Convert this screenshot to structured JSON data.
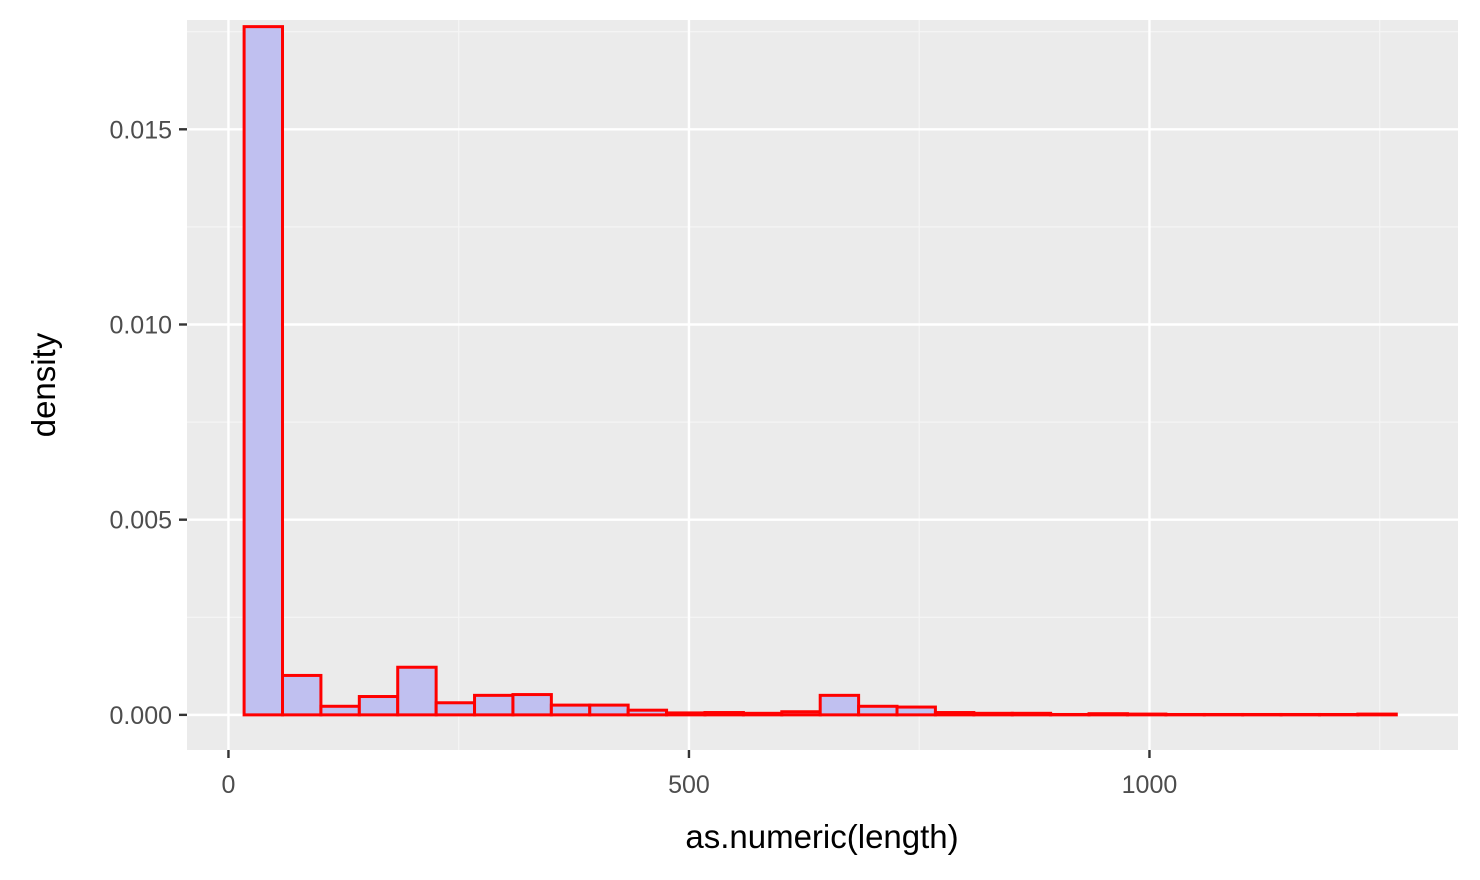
{
  "chart_data": {
    "type": "bar",
    "subtype": "histogram",
    "title": "",
    "xlabel": "as.numeric(length)",
    "ylabel": "density",
    "xlim": [
      -45,
      1335
    ],
    "ylim": [
      -0.0009,
      0.0178
    ],
    "x_ticks": [
      0,
      500,
      1000
    ],
    "x_tick_labels": [
      "0",
      "500",
      "1000"
    ],
    "y_ticks": [
      0.0,
      0.005,
      0.01,
      0.015
    ],
    "y_tick_labels": [
      "0.000",
      "0.005",
      "0.010",
      "0.015"
    ],
    "grid": true,
    "bin_width": 41.7,
    "bins": [
      {
        "x0": 17.0,
        "x1": 58.7,
        "density": 0.01763
      },
      {
        "x0": 58.7,
        "x1": 100.4,
        "density": 0.00101
      },
      {
        "x0": 100.4,
        "x1": 142.1,
        "density": 0.00022
      },
      {
        "x0": 142.1,
        "x1": 183.8,
        "density": 0.00047
      },
      {
        "x0": 183.8,
        "x1": 225.5,
        "density": 0.00122
      },
      {
        "x0": 225.5,
        "x1": 267.2,
        "density": 0.00031
      },
      {
        "x0": 267.2,
        "x1": 308.9,
        "density": 0.0005
      },
      {
        "x0": 308.9,
        "x1": 350.6,
        "density": 0.00052
      },
      {
        "x0": 350.6,
        "x1": 392.3,
        "density": 0.00025
      },
      {
        "x0": 392.3,
        "x1": 434.0,
        "density": 0.00025
      },
      {
        "x0": 434.0,
        "x1": 475.7,
        "density": 0.00012
      },
      {
        "x0": 475.7,
        "x1": 517.4,
        "density": 5e-05
      },
      {
        "x0": 517.4,
        "x1": 559.1,
        "density": 6e-05
      },
      {
        "x0": 559.1,
        "x1": 600.8,
        "density": 4e-05
      },
      {
        "x0": 600.8,
        "x1": 642.5,
        "density": 8e-05
      },
      {
        "x0": 642.5,
        "x1": 684.2,
        "density": 0.0005
      },
      {
        "x0": 684.2,
        "x1": 725.9,
        "density": 0.00022
      },
      {
        "x0": 725.9,
        "x1": 767.6,
        "density": 0.0002
      },
      {
        "x0": 767.6,
        "x1": 809.3,
        "density": 6e-05
      },
      {
        "x0": 809.3,
        "x1": 851.0,
        "density": 4e-05
      },
      {
        "x0": 851.0,
        "x1": 892.7,
        "density": 4e-05
      },
      {
        "x0": 892.7,
        "x1": 934.4,
        "density": 1e-05
      },
      {
        "x0": 934.4,
        "x1": 976.1,
        "density": 3e-05
      },
      {
        "x0": 976.1,
        "x1": 1017.8,
        "density": 2e-05
      },
      {
        "x0": 1017.8,
        "x1": 1059.5,
        "density": 1e-05
      },
      {
        "x0": 1059.5,
        "x1": 1101.2,
        "density": 1e-05
      },
      {
        "x0": 1101.2,
        "x1": 1142.9,
        "density": 1e-05
      },
      {
        "x0": 1142.9,
        "x1": 1184.6,
        "density": 1e-05
      },
      {
        "x0": 1184.6,
        "x1": 1226.3,
        "density": 1e-05
      },
      {
        "x0": 1226.3,
        "x1": 1268.0,
        "density": 2e-05
      }
    ],
    "colors": {
      "panel_background": "#ebebeb",
      "grid_major": "#ffffff",
      "grid_minor": "#f5f5f5",
      "bar_fill": "#c0c0f0",
      "bar_outline": "#ff0000",
      "tick_text": "#4d4d4d",
      "tick_mark": "#333333",
      "axis_title": "#000000"
    }
  }
}
